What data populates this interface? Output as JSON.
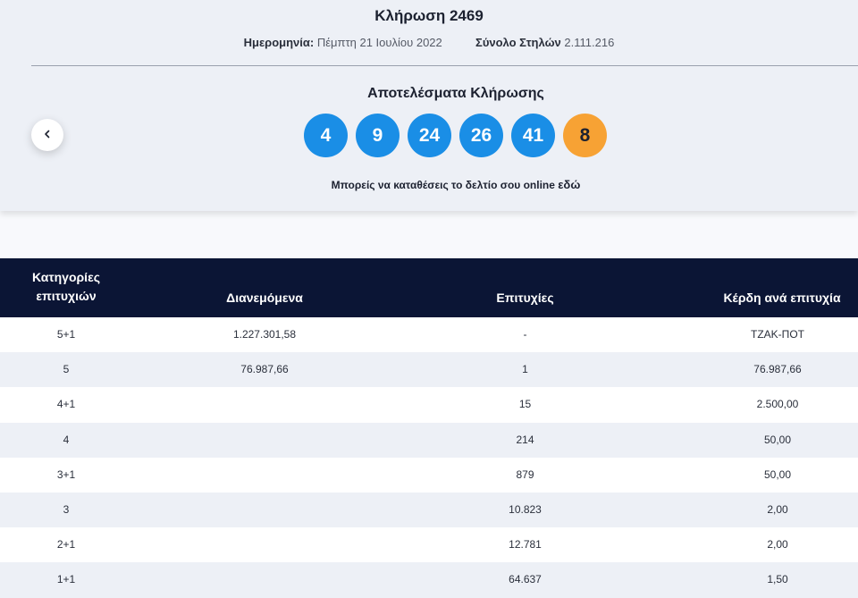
{
  "draw": {
    "title": "Κλήρωση 2469",
    "date_label": "Ημερομηνία:",
    "date_value": "Πέμπτη 21 Ιουλίου 2022",
    "columns_label": "Σύνολο Στηλών",
    "columns_value": "2.111.216"
  },
  "results": {
    "title": "Αποτελέσματα Κλήρωσης",
    "numbers": [
      "4",
      "9",
      "24",
      "26",
      "41"
    ],
    "bonus": "8",
    "online_text": "Μπορείς να καταθέσεις το δελτίο σου online",
    "online_link": "εδώ",
    "prev_icon": "chevron-left-icon",
    "colors": {
      "main_ball": "#1a8ee6",
      "bonus_ball": "#f7a234",
      "header_bg": "#0b1535"
    }
  },
  "table": {
    "headers": [
      "Κατηγορίες επιτυχιών",
      "Διανεμόμενα",
      "Επιτυχίες",
      "Κέρδη ανά επιτυχία"
    ],
    "rows": [
      [
        "5+1",
        "1.227.301,58",
        "-",
        "ΤΖΑΚ-ΠΟΤ"
      ],
      [
        "5",
        "76.987,66",
        "1",
        "76.987,66"
      ],
      [
        "4+1",
        "",
        "15",
        "2.500,00"
      ],
      [
        "4",
        "",
        "214",
        "50,00"
      ],
      [
        "3+1",
        "",
        "879",
        "50,00"
      ],
      [
        "3",
        "",
        "10.823",
        "2,00"
      ],
      [
        "2+1",
        "",
        "12.781",
        "2,00"
      ],
      [
        "1+1",
        "",
        "64.637",
        "1,50"
      ]
    ]
  }
}
